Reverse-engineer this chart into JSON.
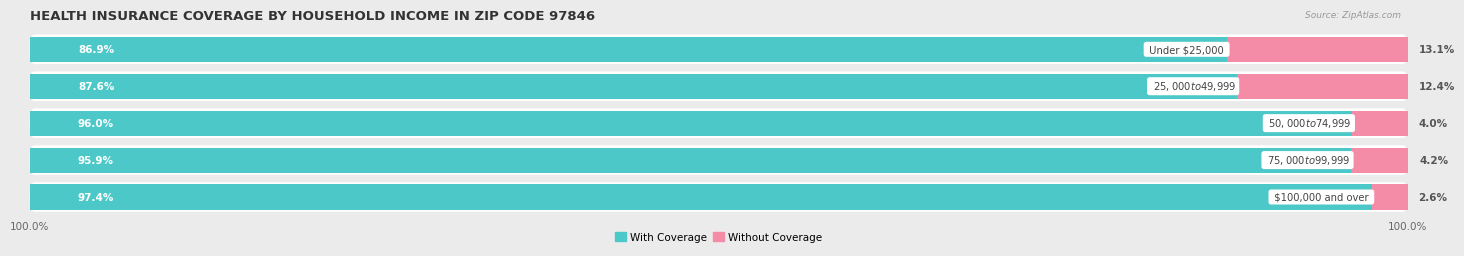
{
  "title": "HEALTH INSURANCE COVERAGE BY HOUSEHOLD INCOME IN ZIP CODE 97846",
  "source": "Source: ZipAtlas.com",
  "categories": [
    "Under $25,000",
    "$25,000 to $49,999",
    "$50,000 to $74,999",
    "$75,000 to $99,999",
    "$100,000 and over"
  ],
  "with_coverage": [
    86.9,
    87.6,
    96.0,
    95.9,
    97.4
  ],
  "without_coverage": [
    13.1,
    12.4,
    4.0,
    4.2,
    2.6
  ],
  "color_with": "#4dc8c8",
  "color_without": "#f48ca8",
  "bg_color": "#ebebeb",
  "bar_bg_color": "#ffffff",
  "row_bg_color": "#f5f5f5",
  "title_fontsize": 9.5,
  "label_fontsize": 7.5,
  "tick_fontsize": 7.5,
  "source_fontsize": 6.5,
  "bar_height": 0.68,
  "total_width": 100,
  "legend_labels": [
    "With Coverage",
    "Without Coverage"
  ]
}
